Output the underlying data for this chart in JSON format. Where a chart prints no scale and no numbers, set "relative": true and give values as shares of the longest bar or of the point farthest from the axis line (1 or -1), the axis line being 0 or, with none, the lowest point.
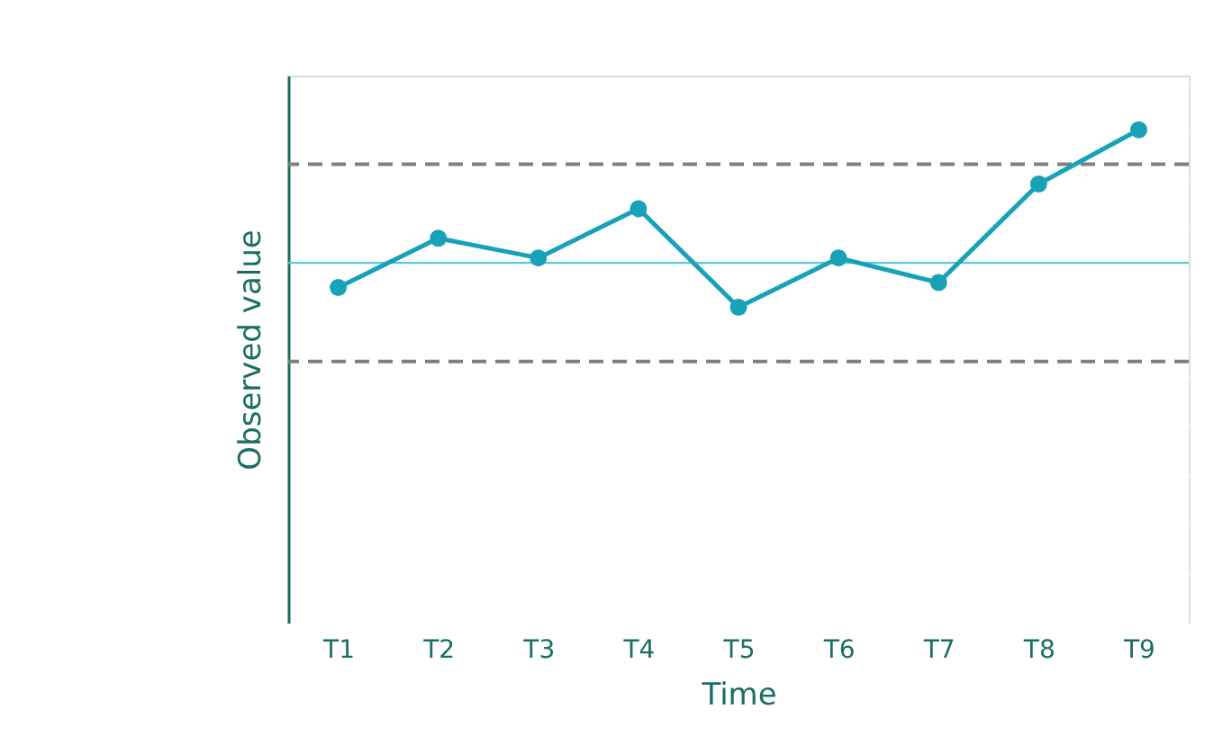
{
  "chart_data": {
    "type": "line",
    "xlabel": "Time",
    "ylabel": "Observed value",
    "relative": true,
    "categories": [
      "T1",
      "T2",
      "T3",
      "T4",
      "T5",
      "T6",
      "T7",
      "T8",
      "T9"
    ],
    "series": [
      {
        "color": "#17a2b8",
        "values": [
          0.68,
          0.78,
          0.74,
          0.84,
          0.64,
          0.74,
          0.69,
          0.89,
          1.0
        ]
      }
    ],
    "marker": "circle",
    "line_style": "solid",
    "grid": true,
    "ref_lines": [
      {
        "axis": "y",
        "value": 0.93,
        "color": "#808080",
        "line_style": "dashed"
      },
      {
        "axis": "y",
        "value": 0.73,
        "color": "#5bc8d8",
        "line_style": "solid"
      },
      {
        "axis": "y",
        "value": 0.53,
        "color": "#808080",
        "line_style": "dashed"
      }
    ]
  }
}
